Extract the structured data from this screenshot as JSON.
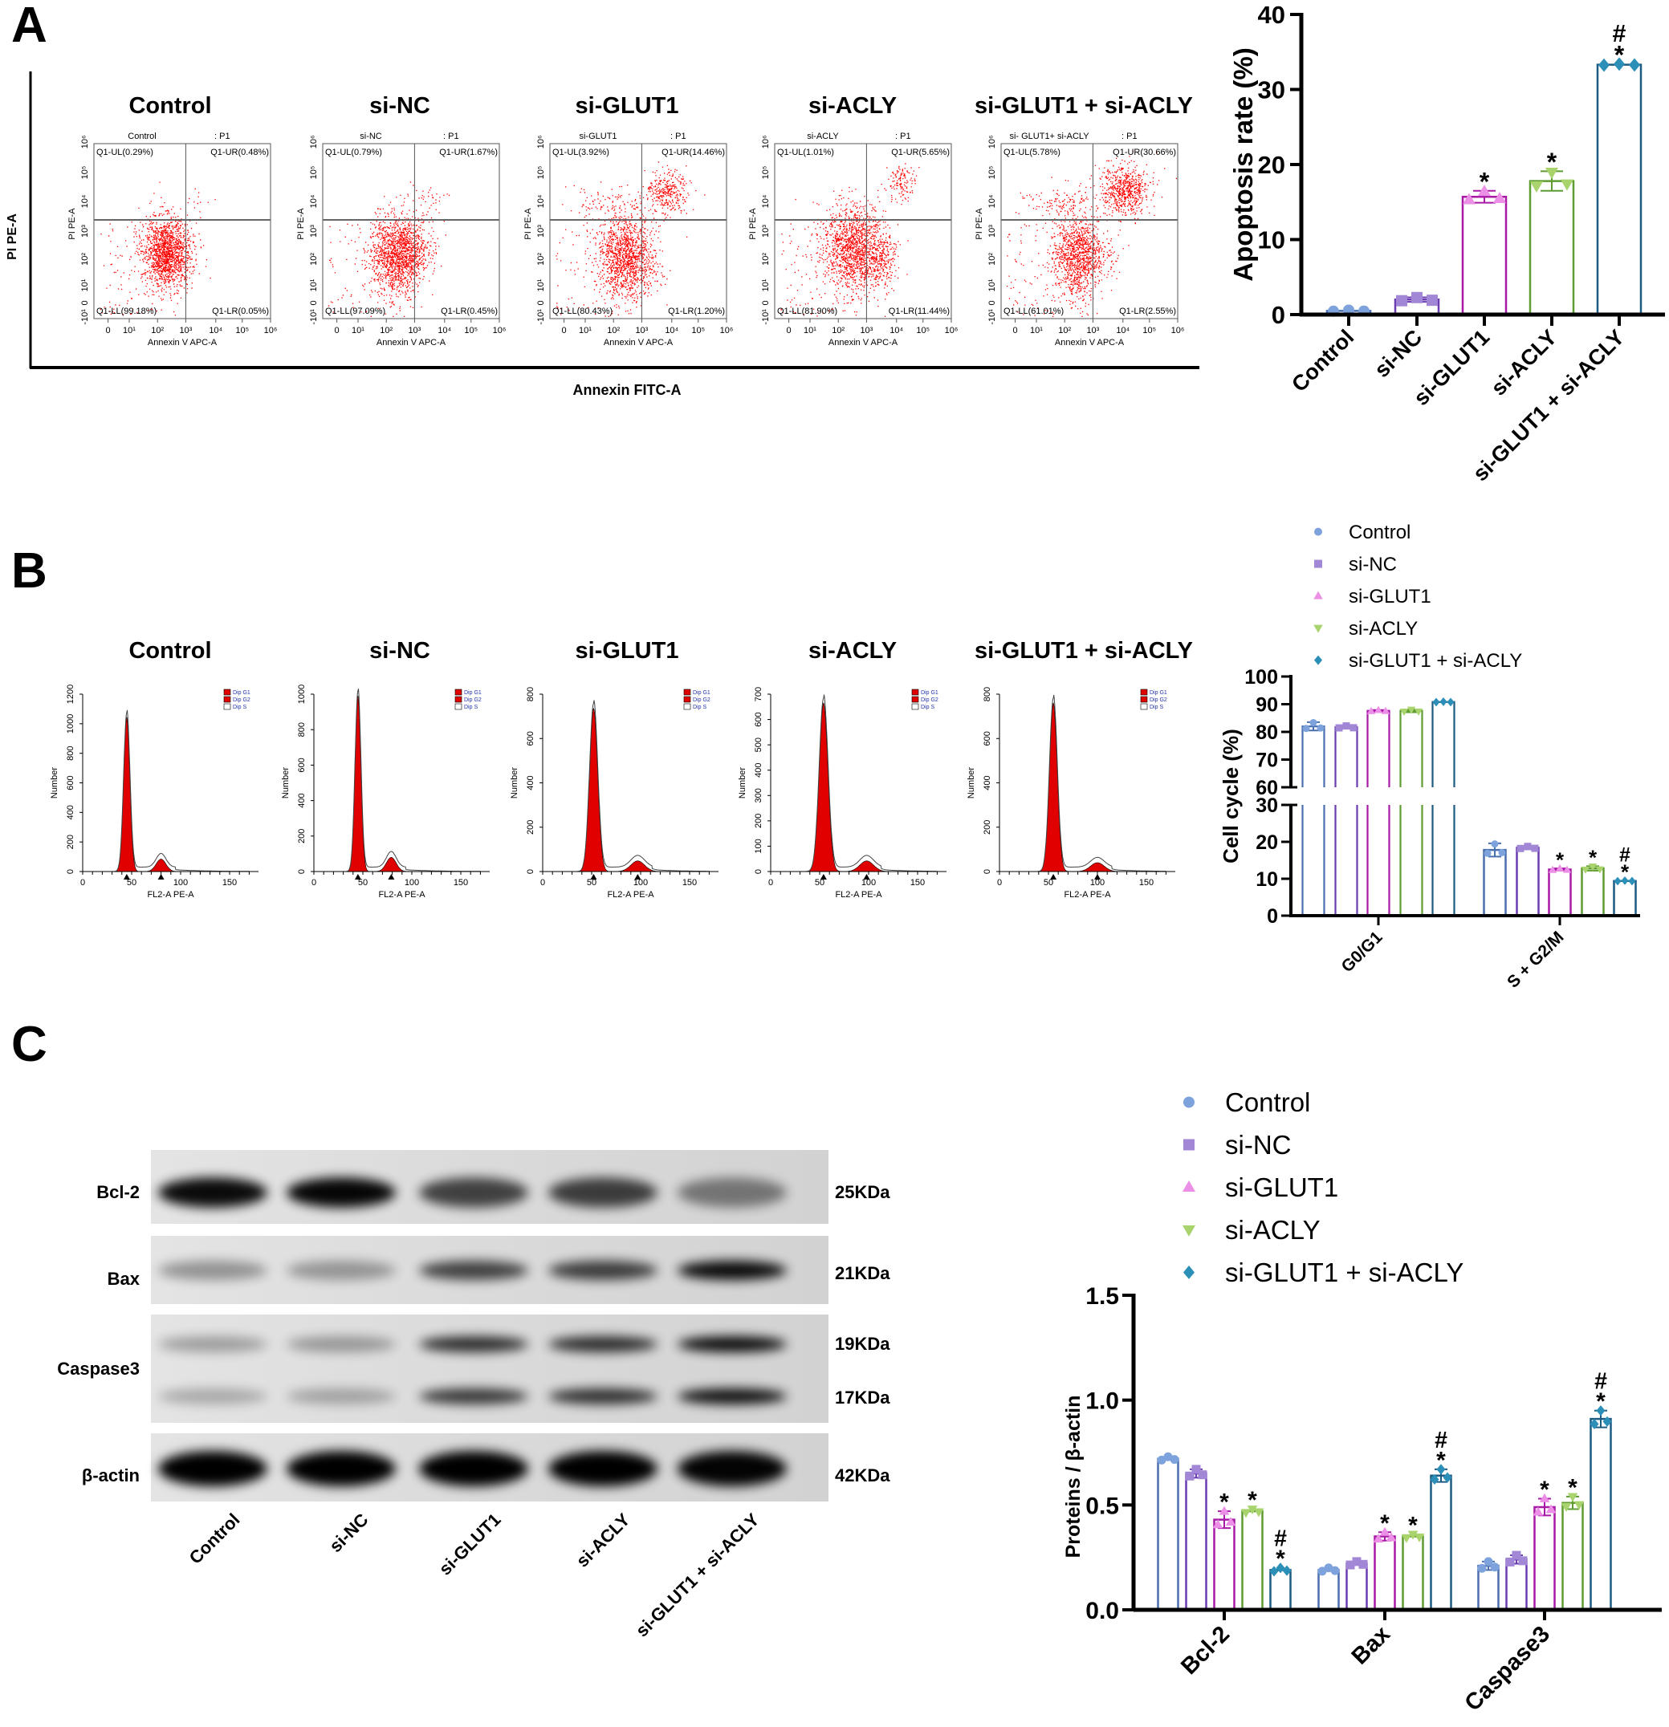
{
  "panels": {
    "a": "A",
    "b": "B",
    "c": "C"
  },
  "groups": [
    "Control",
    "si-NC",
    "si-GLUT1",
    "si-ACLY",
    "si-GLUT1 + si-ACLY"
  ],
  "colors": {
    "marker": [
      "#7ea3dc",
      "#a287d6",
      "#ec8fe6",
      "#a9d46d",
      "#2b8fb8"
    ],
    "bar_outline": [
      "#4a6fae",
      "#6b3cb0",
      "#a81aa6",
      "#5f9c31",
      "#1c5c82"
    ],
    "scatter": "#ff0000",
    "histogram_fill": "#e00000"
  },
  "flow": {
    "y_label": "PI PE-A",
    "x_label": "Annexin FITC-A",
    "plot_x_axis": "Annexin V APC-A",
    "plot_y_axis": "PI PE-A",
    "gate": ": P1",
    "x_ticks": [
      "0",
      "10¹",
      "10²",
      "10³",
      "10⁴",
      "10⁵",
      "10⁶"
    ],
    "y_ticks": [
      "-10¹",
      "0",
      "10¹",
      "10²",
      "10³",
      "10⁴",
      "10⁵",
      "10⁶"
    ],
    "plots": [
      {
        "title": "Control",
        "header": "Control",
        "ul": "Q1-UL(0.29%)",
        "ur": "Q1-UR(0.48%)",
        "ll": "Q1-LL(99.18%)",
        "lr": "Q1-LR(0.05%)"
      },
      {
        "title": "si-NC",
        "header": "si-NC",
        "ul": "Q1-UL(0.79%)",
        "ur": "Q1-UR(1.67%)",
        "ll": "Q1-LL(97.09%)",
        "lr": "Q1-LR(0.45%)"
      },
      {
        "title": "si-GLUT1",
        "header": "si-GLUT1",
        "ul": "Q1-UL(3.92%)",
        "ur": "Q1-UR(14.46%)",
        "ll": "Q1-LL(80.43%)",
        "lr": "Q1-LR(1.20%)"
      },
      {
        "title": "si-ACLY",
        "header": "si-ACLY",
        "ul": "Q1-UL(1.01%)",
        "ur": "Q1-UR(5.65%)",
        "ll": "Q1-LL(81.90%)",
        "lr": "Q1-LR(11.44%)"
      },
      {
        "title": "si-GLUT1 + si-ACLY",
        "header": "si- GLUT1+ si-ACLY",
        "ul": "Q1-UL(5.78%)",
        "ur": "Q1-UR(30.66%)",
        "ll": "Q1-LL(61.01%)",
        "lr": "Q1-LR(2.55%)"
      }
    ]
  },
  "cell_cycle_hist": {
    "x_label": "FL2-A PE-A",
    "y_label": "Number",
    "legend": [
      "Dip G1",
      "Dip G2",
      "Dip S"
    ],
    "x_ticks": [
      "0",
      "50",
      "100",
      "150"
    ],
    "plots": [
      {
        "title": "Control",
        "y_ticks": [
          "0",
          "200",
          "400",
          "600",
          "800",
          "1000",
          "1200"
        ]
      },
      {
        "title": "si-NC",
        "y_ticks": [
          "0",
          "200",
          "400",
          "600",
          "800",
          "1000"
        ]
      },
      {
        "title": "si-GLUT1",
        "y_ticks": [
          "0",
          "200",
          "400",
          "600",
          "800"
        ]
      },
      {
        "title": "si-ACLY",
        "y_ticks": [
          "0",
          "100",
          "200",
          "300",
          "400",
          "500",
          "600",
          "700"
        ]
      },
      {
        "title": "si-GLUT1 + si-ACLY",
        "y_ticks": [
          "0",
          "200",
          "400",
          "600",
          "800"
        ]
      }
    ]
  },
  "western": {
    "rows": [
      {
        "label": "Bcl-2",
        "kda": [
          "25KDa"
        ]
      },
      {
        "label": "Bax",
        "kda": [
          "21KDa"
        ]
      },
      {
        "label": "Caspase3",
        "kda": [
          "19KDa",
          "17KDa"
        ]
      },
      {
        "label": "β-actin",
        "kda": [
          "42KDa"
        ]
      }
    ],
    "lanes": [
      "Control",
      "si-NC",
      "si-GLUT1",
      "si-ACLY",
      "si-GLUT1 + si-ACLY"
    ]
  },
  "chart_data": [
    {
      "type": "bar",
      "panel": "A",
      "categories": [
        "Control",
        "si-NC",
        "si-GLUT1",
        "si-ACLY",
        "si-GLUT1 + si-ACLY"
      ],
      "values": [
        0.5,
        2.0,
        15.7,
        17.8,
        33.3
      ],
      "errors": [
        0.1,
        0.3,
        0.8,
        1.3,
        0.1
      ],
      "significance": [
        "",
        "",
        "*",
        "*",
        "*#"
      ],
      "title": "",
      "xlabel": "",
      "ylabel": "Apoptosis rate (%)",
      "ylim": [
        0,
        40
      ],
      "yticks": [
        "0",
        "10",
        "20",
        "30",
        "40"
      ],
      "grid": false
    },
    {
      "type": "bar",
      "panel": "B",
      "categories": [
        "G0/G1",
        "S + G2/M"
      ],
      "series": [
        {
          "name": "Control",
          "values": [
            82.0,
            17.8
          ],
          "errors": [
            1.5,
            1.8
          ],
          "significance": [
            "",
            ""
          ]
        },
        {
          "name": "si-NC",
          "values": [
            81.7,
            18.4
          ],
          "errors": [
            0.5,
            0.4
          ],
          "significance": [
            "",
            ""
          ]
        },
        {
          "name": "si-GLUT1",
          "values": [
            87.6,
            12.5
          ],
          "errors": [
            0.3,
            0.3
          ],
          "significance": [
            "",
            "*"
          ]
        },
        {
          "name": "si-ACLY",
          "values": [
            87.6,
            12.8
          ],
          "errors": [
            0.5,
            0.6
          ],
          "significance": [
            "",
            "*"
          ]
        },
        {
          "name": "si-GLUT1 + si-ACLY",
          "values": [
            90.8,
            9.4
          ],
          "errors": [
            0.1,
            0.1
          ],
          "significance": [
            "",
            "*#"
          ]
        }
      ],
      "title": "",
      "xlabel": "",
      "ylabel": "Cell cycle (%)",
      "y_axis_break": [
        [
          0,
          30
        ],
        [
          60,
          100
        ]
      ],
      "yticks": [
        "0",
        "10",
        "20",
        "30",
        "60",
        "70",
        "80",
        "90",
        "100"
      ],
      "legend": "top",
      "grid": false
    },
    {
      "type": "bar",
      "panel": "C",
      "categories": [
        "Bcl-2",
        "Bax",
        "Caspase3"
      ],
      "series": [
        {
          "name": "Control",
          "values": [
            0.72,
            0.19,
            0.21
          ],
          "errors": [
            0.01,
            0.01,
            0.02
          ],
          "significance": [
            "",
            "",
            ""
          ]
        },
        {
          "name": "si-NC",
          "values": [
            0.65,
            0.22,
            0.24
          ],
          "errors": [
            0.02,
            0.01,
            0.02
          ],
          "significance": [
            "",
            "",
            ""
          ]
        },
        {
          "name": "si-GLUT1",
          "values": [
            0.43,
            0.35,
            0.49
          ],
          "errors": [
            0.04,
            0.02,
            0.04
          ],
          "significance": [
            "*",
            "*",
            "*"
          ]
        },
        {
          "name": "si-ACLY",
          "values": [
            0.47,
            0.35,
            0.51
          ],
          "errors": [
            0.01,
            0.01,
            0.03
          ],
          "significance": [
            "*",
            "*",
            "*"
          ]
        },
        {
          "name": "si-GLUT1 + si-ACLY",
          "values": [
            0.19,
            0.64,
            0.91
          ],
          "errors": [
            0.01,
            0.03,
            0.04
          ],
          "significance": [
            "*#",
            "*#",
            "*#"
          ]
        }
      ],
      "title": "",
      "xlabel": "",
      "ylabel": "Proteins /  β-actin",
      "ylim": [
        0,
        1.5
      ],
      "yticks": [
        "0.0",
        "0.5",
        "1.0",
        "1.5"
      ],
      "legend": "top",
      "grid": false
    }
  ]
}
